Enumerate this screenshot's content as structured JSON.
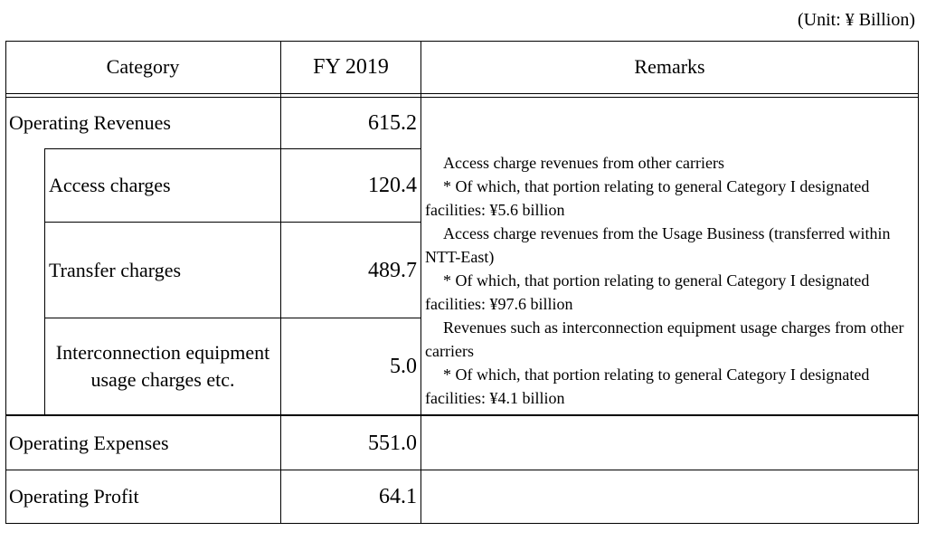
{
  "unit_label": "(Unit: ¥ Billion)",
  "headers": {
    "category": "Category",
    "fy": "FY 2019",
    "remarks": "Remarks"
  },
  "rows": {
    "operating_revenues": {
      "label": "Operating Revenues",
      "value": "615.2"
    },
    "access_charges": {
      "label": "Access charges",
      "value": "120.4"
    },
    "transfer_charges": {
      "label": "Transfer charges",
      "value": "489.7"
    },
    "interconnection": {
      "label": "Interconnection equipment usage charges etc.",
      "value": "5.0"
    },
    "operating_expenses": {
      "label": "Operating Expenses",
      "value": "551.0"
    },
    "operating_profit": {
      "label": "Operating Profit",
      "value": "64.1"
    }
  },
  "remarks": {
    "access_1": "Access charge revenues from other carriers",
    "access_2": "* Of which, that portion relating to general Category I designated facilities: ¥5.6 billion",
    "transfer_1": "Access charge revenues from the Usage Business (transferred within NTT-East)",
    "transfer_2": "* Of which, that portion relating to general Category I designated facilities: ¥97.6 billion",
    "interconnection_1": "Revenues such as interconnection equipment usage charges from other carriers",
    "interconnection_2": "* Of which, that portion relating to general Category I designated facilities: ¥4.1 billion"
  }
}
